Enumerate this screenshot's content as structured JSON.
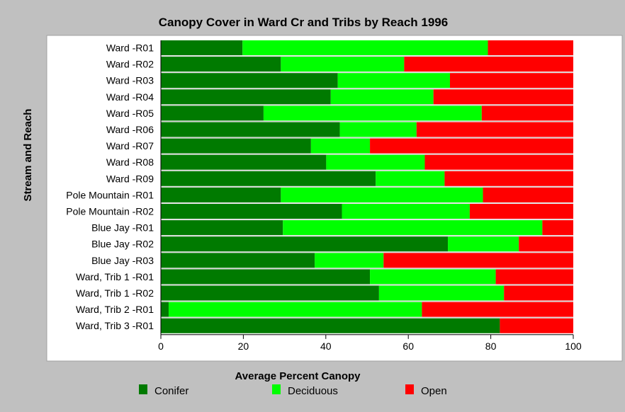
{
  "chart_data": {
    "type": "bar",
    "orientation": "horizontal",
    "stacked": true,
    "title": "Canopy Cover in Ward Cr and Tribs by Reach 1996",
    "xlabel": "Average Percent Canopy",
    "ylabel": "Stream and Reach",
    "xlim": [
      0,
      100
    ],
    "xticks": [
      "0",
      "20",
      "40",
      "60",
      "80",
      "100"
    ],
    "grid": false,
    "legend_position": "bottom",
    "categories": [
      "Ward -R01",
      "Ward -R02",
      "Ward -R03",
      "Ward -R04",
      "Ward -R05",
      "Ward -R06",
      "Ward -R07",
      "Ward -R08",
      "Ward -R09",
      "Pole Mountain -R01",
      "Pole Mountain -R02",
      "Blue Jay -R01",
      "Blue Jay -R02",
      "Blue Jay -R03",
      "Ward, Trib 1 -R01",
      "Ward, Trib 1 -R02",
      "Ward, Trib 2 -R01",
      "Ward, Trib 3 -R01"
    ],
    "series": [
      {
        "name": "Conifer",
        "color": "#007a00",
        "values": [
          19.8,
          29.1,
          42.9,
          41.2,
          24.9,
          43.4,
          36.4,
          40.1,
          52.1,
          29.1,
          43.9,
          29.6,
          69.6,
          37.3,
          50.7,
          52.9,
          1.9,
          82.2
        ]
      },
      {
        "name": "Deciduous",
        "color": "#00ff00",
        "values": [
          59.5,
          29.9,
          27.2,
          24.9,
          52.9,
          18.6,
          14.3,
          23.9,
          16.7,
          49.0,
          31.0,
          62.9,
          17.2,
          16.7,
          30.5,
          30.3,
          61.4,
          0
        ]
      },
      {
        "name": "Open",
        "color": "#ff0000",
        "values": [
          20.7,
          41.0,
          29.9,
          33.9,
          22.2,
          38.0,
          49.3,
          36.0,
          31.2,
          21.9,
          25.1,
          7.5,
          13.2,
          46.0,
          18.8,
          16.8,
          36.7,
          17.8
        ]
      }
    ]
  },
  "colors": {
    "background": "#c0c0c0",
    "plot_background": "#ffffff",
    "plot_frame": "#a0a0a0"
  }
}
